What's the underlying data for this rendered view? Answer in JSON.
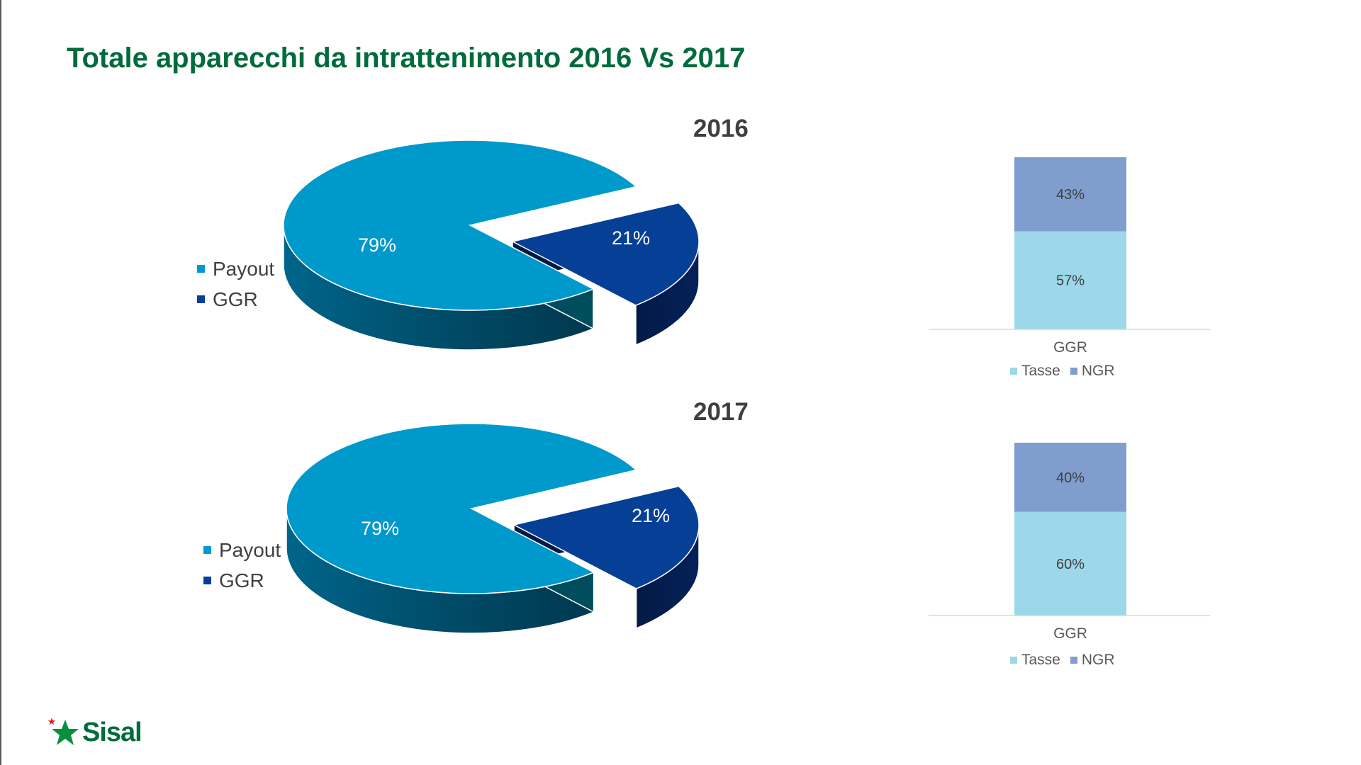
{
  "page": {
    "title": "Totale apparecchi da intrattenimento 2016 Vs 2017"
  },
  "colors": {
    "payout": "#0099cc",
    "ggr": "#063f96",
    "tasse": "#9cd7ea",
    "ngr": "#7f9ece",
    "title": "#006b3c"
  },
  "chart_data": [
    {
      "type": "pie",
      "title": "2016",
      "labels": [
        "Payout",
        "GGR"
      ],
      "values": [
        79,
        21
      ],
      "data_labels": [
        "79%",
        "21%"
      ],
      "legend": "left",
      "exploded": "GGR",
      "style": "3d"
    },
    {
      "type": "bar",
      "stacked": true,
      "categories": [
        "GGR"
      ],
      "series": [
        {
          "name": "Tasse",
          "values": [
            57
          ],
          "label": "57%"
        },
        {
          "name": "NGR",
          "values": [
            43
          ],
          "label": "43%"
        }
      ],
      "ylim": [
        0,
        100
      ],
      "legend": "bottom"
    },
    {
      "type": "pie",
      "title": "2017",
      "labels": [
        "Payout",
        "GGR"
      ],
      "values": [
        79,
        21
      ],
      "data_labels": [
        "79%",
        "21%"
      ],
      "legend": "left",
      "exploded": "GGR",
      "style": "3d"
    },
    {
      "type": "bar",
      "stacked": true,
      "categories": [
        "GGR"
      ],
      "series": [
        {
          "name": "Tasse",
          "values": [
            60
          ],
          "label": "60%"
        },
        {
          "name": "NGR",
          "values": [
            40
          ],
          "label": "40%"
        }
      ],
      "ylim": [
        0,
        100
      ],
      "legend": "bottom"
    }
  ],
  "logo": {
    "text": "Sisal",
    "icon": "star-logo-icon"
  }
}
